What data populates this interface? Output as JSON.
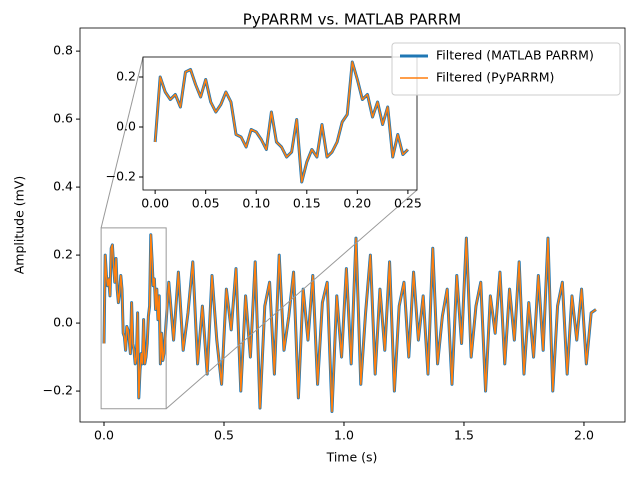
{
  "chart_data": {
    "type": "line",
    "title": "PyPARRM vs. MATLAB PARRM",
    "x_label": "Time (s)",
    "y_label": "Amplitude (mV)",
    "legend": "upper right",
    "x": [
      0.0,
      0.005,
      0.01,
      0.015,
      0.02,
      0.025,
      0.03,
      0.035,
      0.04,
      0.045,
      0.05,
      0.055,
      0.06,
      0.065,
      0.07,
      0.075,
      0.08,
      0.085,
      0.09,
      0.095,
      0.1,
      0.105,
      0.11,
      0.115,
      0.12,
      0.125,
      0.13,
      0.135,
      0.14,
      0.145,
      0.15,
      0.155,
      0.16,
      0.165,
      0.17,
      0.175,
      0.18,
      0.185,
      0.19,
      0.195,
      0.2,
      0.205,
      0.21,
      0.215,
      0.22,
      0.225,
      0.23,
      0.235,
      0.24,
      0.245,
      0.25,
      0.27,
      0.29,
      0.31,
      0.33,
      0.35,
      0.37,
      0.39,
      0.41,
      0.43,
      0.45,
      0.47,
      0.49,
      0.51,
      0.53,
      0.55,
      0.57,
      0.59,
      0.61,
      0.63,
      0.65,
      0.67,
      0.69,
      0.71,
      0.73,
      0.75,
      0.77,
      0.79,
      0.81,
      0.83,
      0.85,
      0.87,
      0.89,
      0.91,
      0.93,
      0.95,
      0.97,
      0.99,
      1.01,
      1.03,
      1.05,
      1.07,
      1.09,
      1.11,
      1.13,
      1.15,
      1.17,
      1.19,
      1.21,
      1.23,
      1.25,
      1.27,
      1.29,
      1.31,
      1.33,
      1.35,
      1.37,
      1.39,
      1.41,
      1.43,
      1.45,
      1.47,
      1.49,
      1.51,
      1.53,
      1.55,
      1.57,
      1.59,
      1.61,
      1.63,
      1.65,
      1.67,
      1.69,
      1.71,
      1.73,
      1.75,
      1.77,
      1.79,
      1.81,
      1.83,
      1.85,
      1.87,
      1.89,
      1.91,
      1.93,
      1.95,
      1.97,
      1.99,
      2.01,
      2.03,
      2.05
    ],
    "series": [
      {
        "name": "Filtered (MATLAB PARRM)",
        "color": "#1f77b4",
        "values": [
          -0.06,
          0.2,
          0.14,
          0.11,
          0.13,
          0.08,
          0.22,
          0.23,
          0.17,
          0.12,
          0.19,
          0.1,
          0.06,
          0.09,
          0.14,
          0.1,
          -0.03,
          -0.04,
          -0.08,
          -0.01,
          -0.02,
          -0.05,
          -0.09,
          0.06,
          -0.06,
          -0.08,
          -0.12,
          -0.1,
          0.03,
          -0.22,
          -0.14,
          -0.09,
          -0.12,
          0.01,
          -0.12,
          -0.1,
          -0.06,
          0.02,
          0.05,
          0.26,
          0.19,
          0.11,
          0.13,
          0.04,
          0.1,
          0.01,
          0.08,
          -0.12,
          -0.03,
          -0.11,
          -0.09,
          0.12,
          -0.05,
          0.15,
          -0.08,
          0.03,
          0.18,
          -0.12,
          0.05,
          -0.15,
          0.14,
          -0.05,
          -0.18,
          0.1,
          -0.02,
          0.16,
          -0.2,
          0.08,
          -0.1,
          0.18,
          -0.25,
          0.05,
          0.12,
          -0.15,
          0.2,
          -0.08,
          0.02,
          0.15,
          -0.22,
          0.1,
          -0.05,
          0.14,
          -0.18,
          0.06,
          0.12,
          -0.26,
          0.08,
          -0.1,
          0.16,
          -0.12,
          0.25,
          -0.18,
          0.03,
          0.2,
          -0.15,
          0.1,
          -0.08,
          0.18,
          -0.2,
          0.05,
          0.12,
          -0.1,
          0.15,
          -0.05,
          0.08,
          -0.15,
          0.22,
          -0.12,
          0.02,
          0.1,
          -0.18,
          0.14,
          -0.06,
          0.25,
          -0.1,
          0.05,
          0.12,
          -0.2,
          0.08,
          -0.03,
          0.15,
          -0.12,
          0.1,
          -0.05,
          0.18,
          -0.15,
          0.06,
          -0.1,
          0.14,
          -0.08,
          0.25,
          -0.2,
          0.05,
          0.12,
          -0.15,
          0.08,
          -0.05,
          0.1,
          -0.12,
          0.03,
          0.04
        ]
      },
      {
        "name": "Filtered (PyPARRM)",
        "color": "#ff7f0e",
        "values": [
          -0.06,
          0.2,
          0.14,
          0.11,
          0.13,
          0.08,
          0.22,
          0.23,
          0.17,
          0.12,
          0.19,
          0.1,
          0.06,
          0.09,
          0.14,
          0.1,
          -0.03,
          -0.04,
          -0.08,
          -0.01,
          -0.02,
          -0.05,
          -0.09,
          0.06,
          -0.06,
          -0.08,
          -0.12,
          -0.1,
          0.03,
          -0.22,
          -0.14,
          -0.09,
          -0.12,
          0.01,
          -0.12,
          -0.1,
          -0.06,
          0.02,
          0.05,
          0.26,
          0.19,
          0.11,
          0.13,
          0.04,
          0.1,
          0.01,
          0.08,
          -0.12,
          -0.03,
          -0.11,
          -0.09,
          0.12,
          -0.05,
          0.15,
          -0.08,
          0.03,
          0.18,
          -0.12,
          0.05,
          -0.15,
          0.14,
          -0.05,
          -0.18,
          0.1,
          -0.02,
          0.16,
          -0.2,
          0.08,
          -0.1,
          0.18,
          -0.25,
          0.05,
          0.12,
          -0.15,
          0.2,
          -0.08,
          0.02,
          0.15,
          -0.22,
          0.1,
          -0.05,
          0.14,
          -0.18,
          0.06,
          0.12,
          -0.26,
          0.08,
          -0.1,
          0.16,
          -0.12,
          0.25,
          -0.18,
          0.03,
          0.2,
          -0.15,
          0.1,
          -0.08,
          0.18,
          -0.2,
          0.05,
          0.12,
          -0.1,
          0.15,
          -0.05,
          0.08,
          -0.15,
          0.22,
          -0.12,
          0.02,
          0.1,
          -0.18,
          0.14,
          -0.06,
          0.25,
          -0.1,
          0.05,
          0.12,
          -0.2,
          0.08,
          -0.03,
          0.15,
          -0.12,
          0.1,
          -0.05,
          0.18,
          -0.15,
          0.06,
          -0.1,
          0.14,
          -0.08,
          0.25,
          -0.2,
          0.05,
          0.12,
          -0.15,
          0.08,
          -0.05,
          0.1,
          -0.12,
          0.03,
          0.04
        ]
      }
    ],
    "xlim": [
      -0.1,
      2.171
    ],
    "ylim": [
      -0.291,
      0.868
    ],
    "xticks": [
      {
        "value": 0,
        "label": "0.0"
      },
      0.5,
      {
        "value": 1,
        "label": "1.0"
      },
      1.5,
      {
        "value": 2,
        "label": "2.0"
      }
    ],
    "yticks": [
      {
        "value": -0.2,
        "label": "−0.2"
      },
      {
        "value": 0,
        "label": "0.0"
      },
      0.2,
      0.4,
      0.6,
      0.8
    ],
    "inset": {
      "xlim": [
        -0.012,
        0.259
      ],
      "ylim": [
        -0.252,
        0.28
      ],
      "xticks": [
        {
          "value": 0,
          "label": "0.00"
        },
        0.05,
        {
          "value": 0.1,
          "label": "0.10"
        },
        0.15,
        {
          "value": 0.2,
          "label": "0.20"
        },
        0.25
      ],
      "yticks": [
        {
          "value": -0.2,
          "label": "−0.2"
        },
        {
          "value": 0,
          "label": "0.0"
        },
        0.2
      ]
    }
  }
}
